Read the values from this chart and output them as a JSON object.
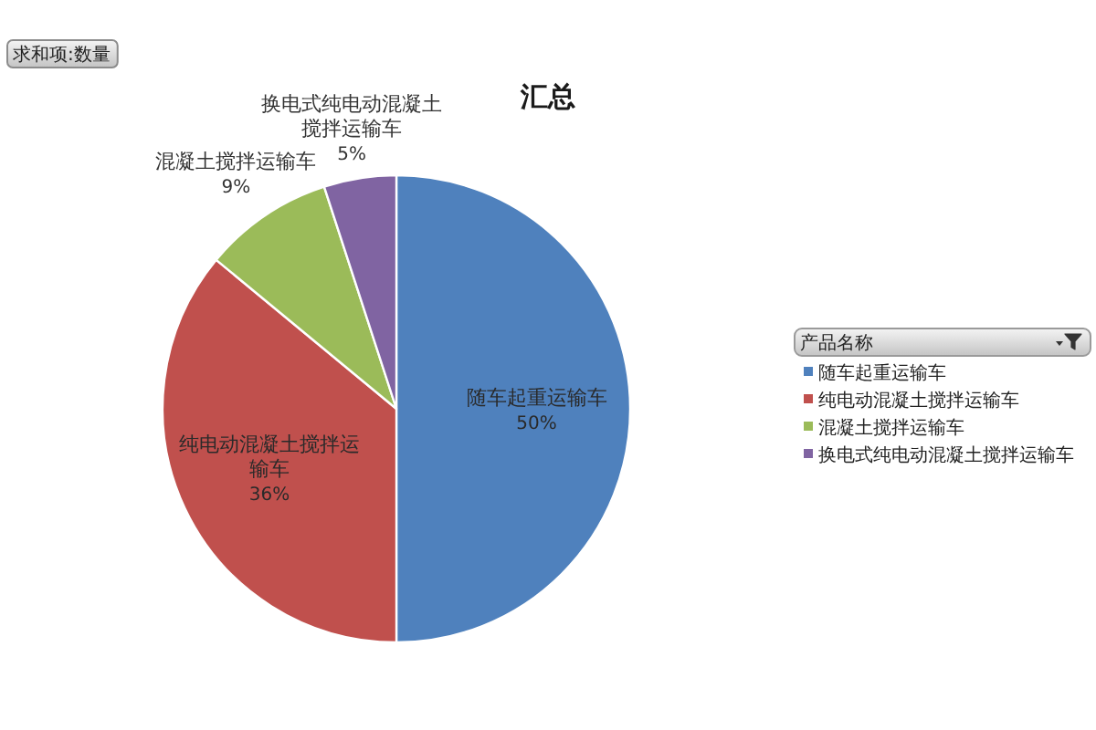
{
  "chart_data": {
    "type": "pie",
    "title": "汇总",
    "categories": [
      "随车起重运输车",
      "纯电动混凝土搅拌运输车",
      "混凝土搅拌运输车",
      "换电式纯电动混凝土搅拌运输车"
    ],
    "values": [
      50,
      36,
      9,
      5
    ],
    "colors": [
      "#4f81bd",
      "#c0504d",
      "#9bbb59",
      "#8064a2"
    ],
    "value_labels": [
      "50%",
      "36%",
      "9%",
      "5%"
    ],
    "legend": "right",
    "legend_title": "产品名称",
    "annotations": [
      "求和项:数量"
    ]
  }
}
